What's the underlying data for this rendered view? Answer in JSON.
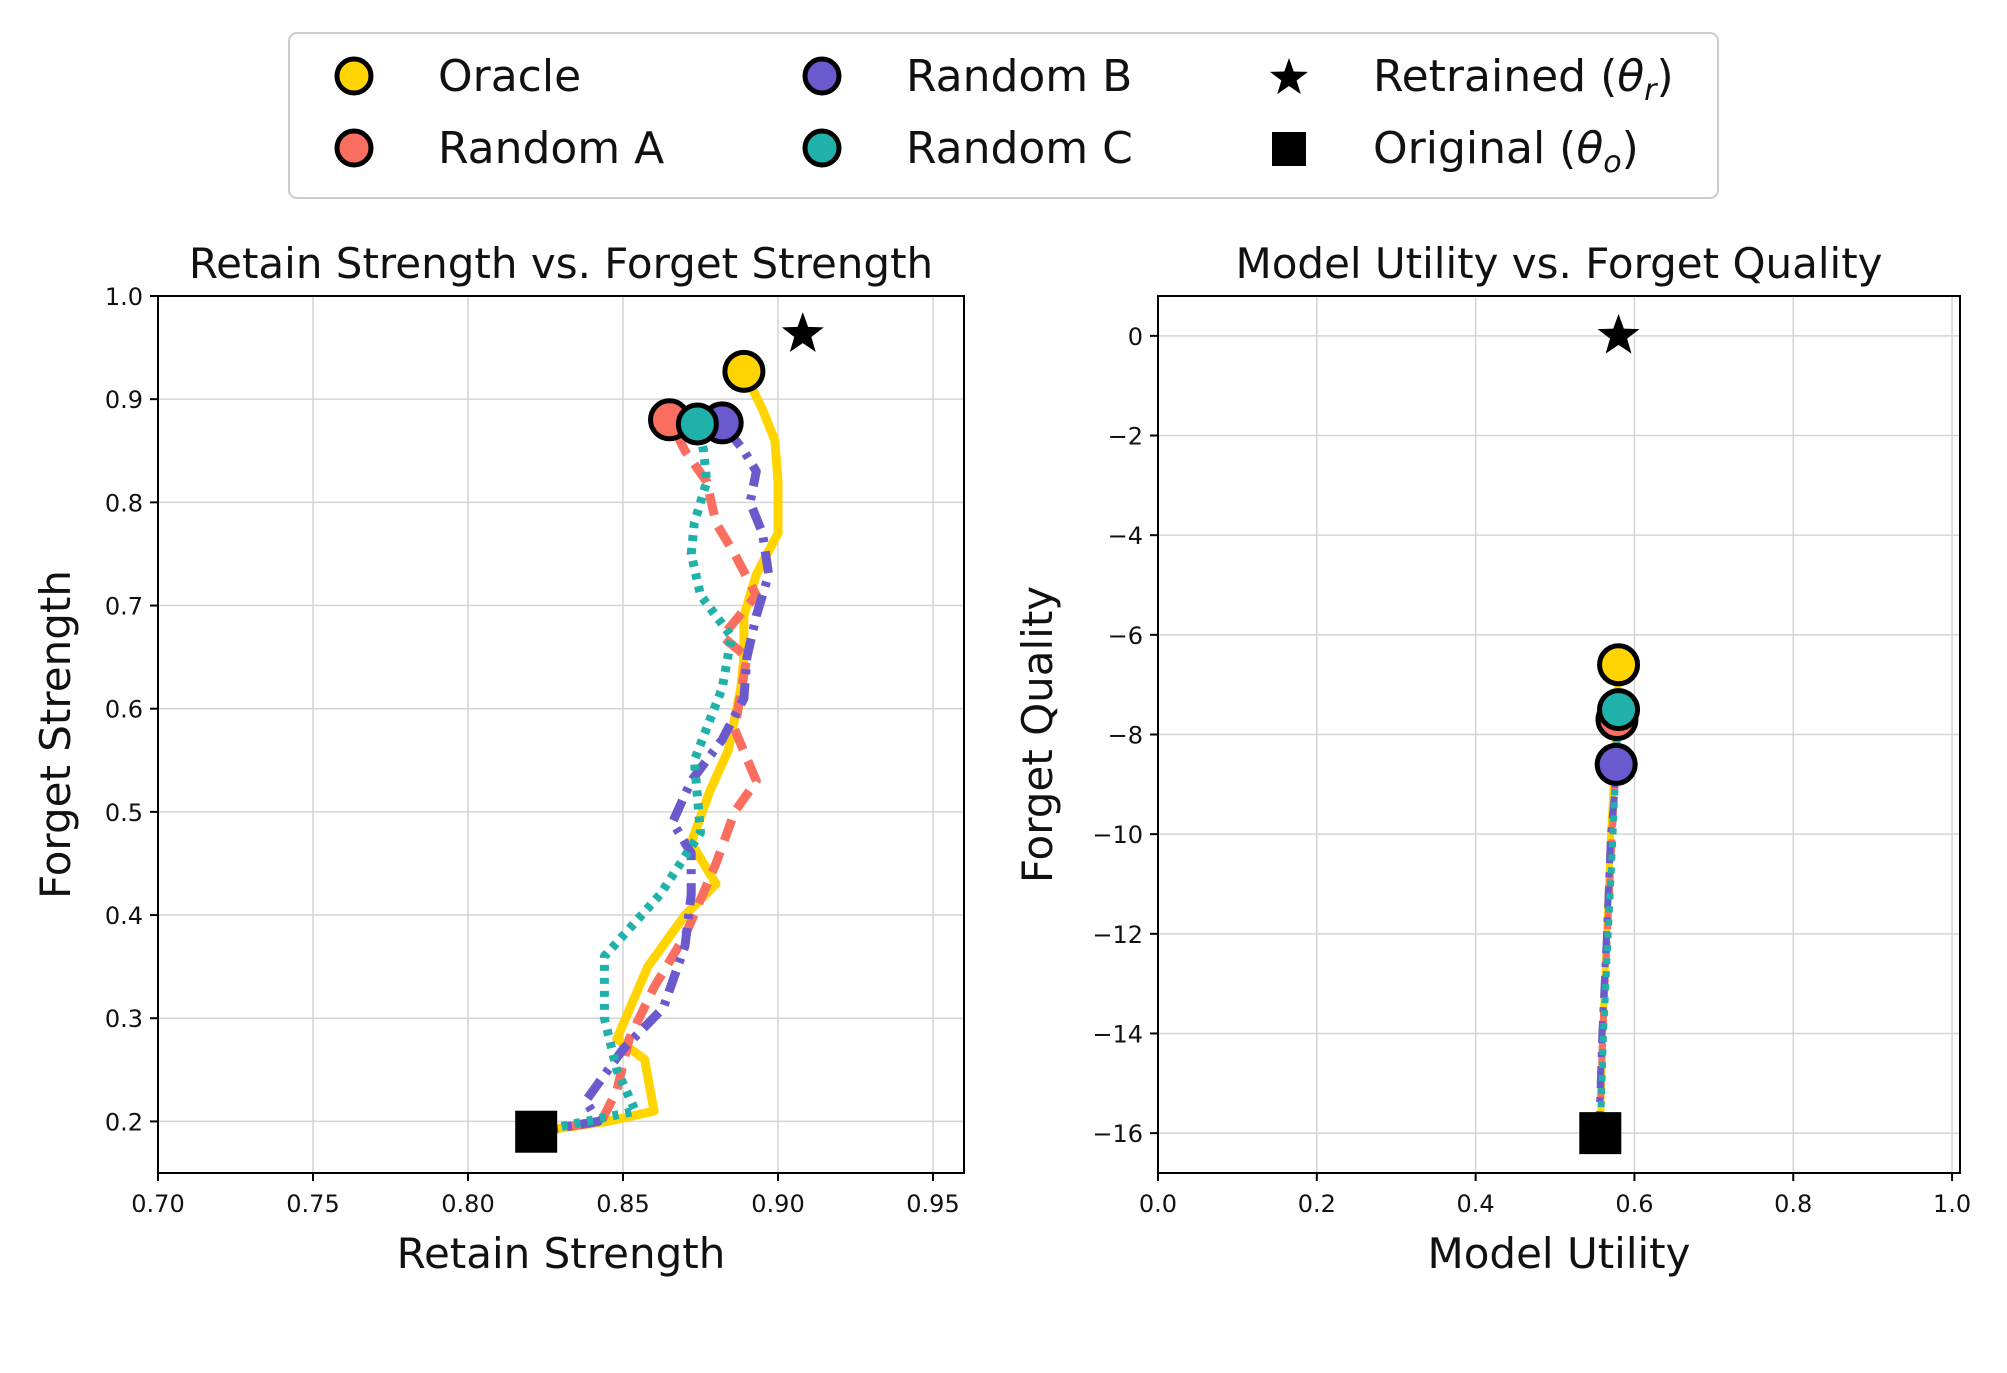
{
  "legend": {
    "entries": [
      {
        "label": "Oracle",
        "marker": "circle",
        "color": "#FFD400",
        "icon": "circle-marker"
      },
      {
        "label": "Random A",
        "marker": "circle",
        "color": "#FA6E5F",
        "icon": "circle-marker"
      },
      {
        "label": "Random B",
        "marker": "circle",
        "color": "#6A5ACD",
        "icon": "circle-marker"
      },
      {
        "label": "Random C",
        "marker": "circle",
        "color": "#20B2AA",
        "icon": "circle-marker"
      },
      {
        "label": "Retrained (θr)",
        "marker": "star",
        "color": "#000000",
        "icon": "star-marker",
        "main": "Retrained (",
        "symbol": "θ",
        "subscript": "r",
        "close": ")"
      },
      {
        "label": "Original (θo)",
        "marker": "square",
        "color": "#000000",
        "icon": "square-marker",
        "main": "Original (",
        "symbol": "θ",
        "subscript": "o",
        "close": ")"
      }
    ]
  },
  "chart_data": [
    {
      "type": "line",
      "title": "Retain Strength vs. Forget Strength",
      "xlabel": "Retain Strength",
      "ylabel": "Forget Strength",
      "xlim": [
        0.7,
        0.96
      ],
      "ylim": [
        0.15,
        1.0
      ],
      "xticks": [
        0.7,
        0.75,
        0.8,
        0.85,
        0.9,
        0.95
      ],
      "xtick_labels": [
        "0.70",
        "0.75",
        "0.80",
        "0.85",
        "0.90",
        "0.95"
      ],
      "yticks": [
        0.2,
        0.3,
        0.4,
        0.5,
        0.6,
        0.7,
        0.8,
        0.9,
        1.0
      ],
      "ytick_labels": [
        "0.2",
        "0.3",
        "0.4",
        "0.5",
        "0.6",
        "0.7",
        "0.8",
        "0.9",
        "1.0"
      ],
      "grid": true,
      "series": [
        {
          "name": "Oracle",
          "color": "#FFD400",
          "style": "solid",
          "x": [
            0.822,
            0.845,
            0.86,
            0.857,
            0.848,
            0.858,
            0.87,
            0.88,
            0.872,
            0.878,
            0.884,
            0.888,
            0.889,
            0.889,
            0.893,
            0.9,
            0.9,
            0.899,
            0.895,
            0.889
          ],
          "y": [
            0.19,
            0.2,
            0.21,
            0.26,
            0.28,
            0.35,
            0.4,
            0.43,
            0.47,
            0.52,
            0.56,
            0.62,
            0.65,
            0.69,
            0.73,
            0.77,
            0.82,
            0.86,
            0.89,
            0.927
          ]
        },
        {
          "name": "Random A",
          "color": "#FA6E5F",
          "style": "dashed",
          "x": [
            0.822,
            0.843,
            0.848,
            0.852,
            0.86,
            0.87,
            0.88,
            0.886,
            0.893,
            0.886,
            0.89,
            0.882,
            0.893,
            0.886,
            0.88,
            0.877,
            0.87,
            0.865
          ],
          "y": [
            0.19,
            0.2,
            0.23,
            0.28,
            0.33,
            0.38,
            0.45,
            0.5,
            0.53,
            0.58,
            0.65,
            0.67,
            0.71,
            0.75,
            0.78,
            0.82,
            0.85,
            0.88
          ]
        },
        {
          "name": "Random B",
          "color": "#6A5ACD",
          "style": "dashdot",
          "x": [
            0.822,
            0.842,
            0.838,
            0.85,
            0.863,
            0.87,
            0.872,
            0.872,
            0.866,
            0.872,
            0.882,
            0.889,
            0.89,
            0.893,
            0.897,
            0.895,
            0.891,
            0.893,
            0.889,
            0.882
          ],
          "y": [
            0.19,
            0.2,
            0.22,
            0.27,
            0.31,
            0.37,
            0.42,
            0.46,
            0.49,
            0.53,
            0.57,
            0.61,
            0.65,
            0.69,
            0.73,
            0.77,
            0.8,
            0.83,
            0.85,
            0.877
          ]
        },
        {
          "name": "Random C",
          "color": "#20B2AA",
          "style": "dotted",
          "x": [
            0.822,
            0.854,
            0.848,
            0.844,
            0.844,
            0.862,
            0.875,
            0.873,
            0.882,
            0.885,
            0.875,
            0.872,
            0.873,
            0.877,
            0.876,
            0.874
          ],
          "y": [
            0.19,
            0.21,
            0.25,
            0.3,
            0.36,
            0.42,
            0.48,
            0.55,
            0.62,
            0.67,
            0.71,
            0.75,
            0.78,
            0.82,
            0.85,
            0.876
          ]
        }
      ],
      "endpoints": [
        {
          "series": "Oracle",
          "x": 0.889,
          "y": 0.927
        },
        {
          "series": "Random A",
          "x": 0.865,
          "y": 0.88
        },
        {
          "series": "Random B",
          "x": 0.882,
          "y": 0.877
        },
        {
          "series": "Random C",
          "x": 0.874,
          "y": 0.876
        }
      ],
      "retrained": {
        "x": 0.908,
        "y": 0.963
      },
      "original": {
        "x": 0.822,
        "y": 0.19
      }
    },
    {
      "type": "line",
      "title": "Model Utility vs. Forget Quality",
      "xlabel": "Model Utility",
      "ylabel": "Forget Quality",
      "xlim": [
        0.0,
        1.01
      ],
      "ylim": [
        -16.8,
        0.8
      ],
      "xticks": [
        0.0,
        0.2,
        0.4,
        0.6,
        0.8,
        1.0
      ],
      "xtick_labels": [
        "0.0",
        "0.2",
        "0.4",
        "0.6",
        "0.8",
        "1.0"
      ],
      "yticks": [
        0,
        -2,
        -4,
        -6,
        -8,
        -10,
        -12,
        -14,
        -16
      ],
      "ytick_labels": [
        "0",
        "−2",
        "−4",
        "−6",
        "−8",
        "−10",
        "−12",
        "−14",
        "−16"
      ],
      "grid": true,
      "series": [
        {
          "name": "Oracle",
          "color": "#FFD400",
          "style": "solid",
          "x": [
            0.557,
            0.56,
            0.565,
            0.57,
            0.575,
            0.578,
            0.58
          ],
          "y": [
            -16.0,
            -14.0,
            -12.0,
            -10.0,
            -8.5,
            -7.5,
            -6.6
          ]
        },
        {
          "name": "Random A",
          "color": "#FA6E5F",
          "style": "dashed",
          "x": [
            0.556,
            0.56,
            0.566,
            0.572,
            0.576,
            0.578
          ],
          "y": [
            -16.0,
            -14.0,
            -12.0,
            -10.0,
            -8.8,
            -7.7
          ]
        },
        {
          "name": "Random B",
          "color": "#6A5ACD",
          "style": "dashdot",
          "x": [
            0.555,
            0.559,
            0.565,
            0.57,
            0.575,
            0.577
          ],
          "y": [
            -16.0,
            -14.0,
            -12.0,
            -10.0,
            -9.2,
            -8.6
          ]
        },
        {
          "name": "Random C",
          "color": "#20B2AA",
          "style": "dotted",
          "x": [
            0.557,
            0.561,
            0.567,
            0.573,
            0.577,
            0.58
          ],
          "y": [
            -16.0,
            -14.0,
            -12.0,
            -10.0,
            -8.5,
            -7.5
          ]
        }
      ],
      "endpoints": [
        {
          "series": "Random A",
          "x": 0.578,
          "y": -7.7
        },
        {
          "series": "Random B",
          "x": 0.577,
          "y": -8.6
        },
        {
          "series": "Random C",
          "x": 0.58,
          "y": -7.5
        },
        {
          "series": "Oracle",
          "x": 0.58,
          "y": -6.6
        }
      ],
      "retrained": {
        "x": 0.58,
        "y": 0.0
      },
      "original": {
        "x": 0.557,
        "y": -16.0
      }
    }
  ]
}
